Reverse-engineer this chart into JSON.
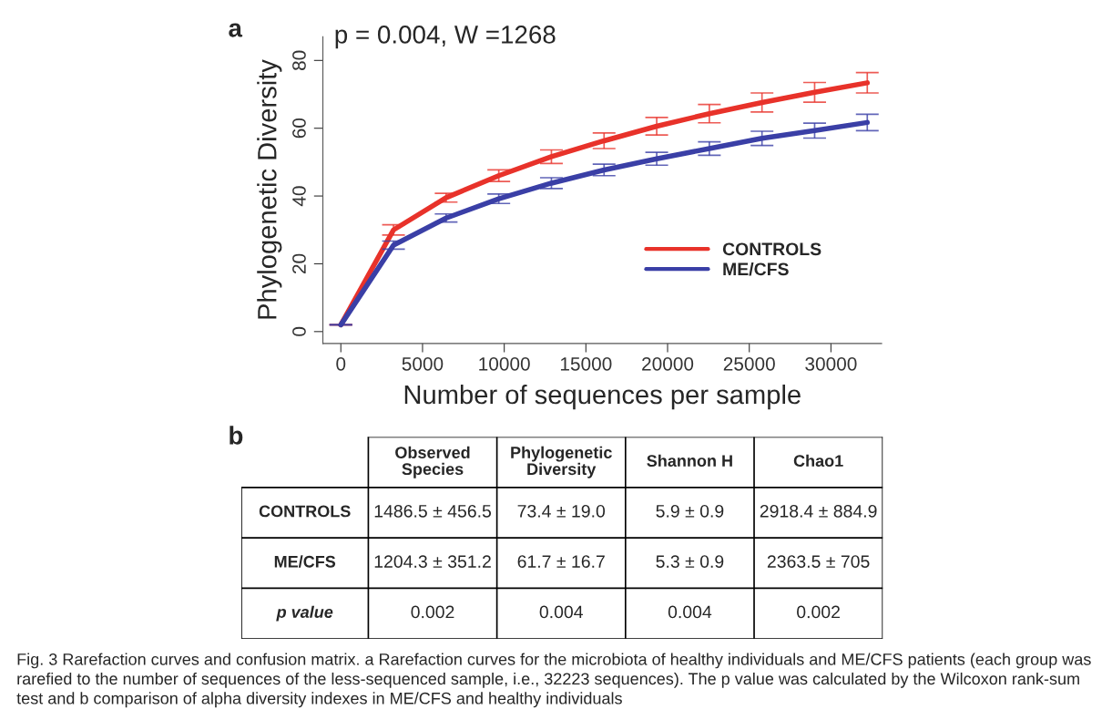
{
  "chart_data": [
    {
      "type": "line",
      "title": "a",
      "xlabel": "Number of sequences per sample",
      "ylabel": "Phylogenetic Diversity",
      "x": [
        0,
        3222,
        6445,
        9667,
        12889,
        16112,
        19334,
        22556,
        25779,
        29001,
        32223
      ],
      "series": [
        {
          "name": "CONTROLS",
          "color": "#e8322a",
          "values": [
            2,
            30,
            39.5,
            46,
            51.6,
            56.3,
            60.6,
            64.3,
            67.6,
            70.6,
            73.4
          ],
          "errors": [
            0,
            1.5,
            1.3,
            1.7,
            2,
            2.3,
            2.6,
            2.7,
            2.8,
            2.9,
            3
          ]
        },
        {
          "name": "ME/CFS",
          "color": "#3a3fa6",
          "values": [
            2,
            25.5,
            33.5,
            39.2,
            43.8,
            47.7,
            51,
            54,
            57,
            59.3,
            61.7
          ],
          "errors": [
            0,
            1.2,
            1.2,
            1.4,
            1.6,
            1.7,
            1.9,
            2,
            2.1,
            2.2,
            2.4
          ]
        }
      ],
      "xlim": [
        -1100,
        33100
      ],
      "xticks": [
        0,
        5000,
        10000,
        15000,
        20000,
        25000,
        30000
      ],
      "ylim": [
        -3.5,
        87
      ],
      "yticks": [
        0,
        20,
        40,
        60,
        80
      ],
      "grid": false,
      "legend": "center right",
      "marker": "none",
      "line_style": "solid",
      "annotations": [
        "p = 0.004, W =1268"
      ]
    },
    {
      "type": "other",
      "title": "b",
      "categories": [
        "Observed\nSpecies",
        "Phylogenetic\nDiversity",
        "Shannon H",
        "Chao1"
      ],
      "y_categories": [
        "CONTROLS",
        "ME/CFS",
        "p value"
      ],
      "cell_labels": [
        [
          "1486.5 ± 456.5",
          "73.4 ± 19.0",
          "5.9 ± 0.9",
          "2918.4 ± 884.9"
        ],
        [
          "1204.3 ± 351.2",
          "61.7 ± 16.7",
          "5.3 ± 0.9",
          "2363.5 ± 705"
        ],
        [
          "0.002",
          "0.004",
          "0.004",
          "0.002"
        ]
      ],
      "annotations": [
        "Fig. 3 Rarefaction curves and confusion matrix. a Rarefaction curves for the microbiota of healthy individuals and ME/CFS patients (each group was rarefied to the number of sequences of the less-sequenced sample, i.e., 32223 sequences). The p value was calculated by the Wilcoxon rank-sum test and b comparison of alpha diversity indexes in ME/CFS and healthy individuals"
      ]
    }
  ]
}
